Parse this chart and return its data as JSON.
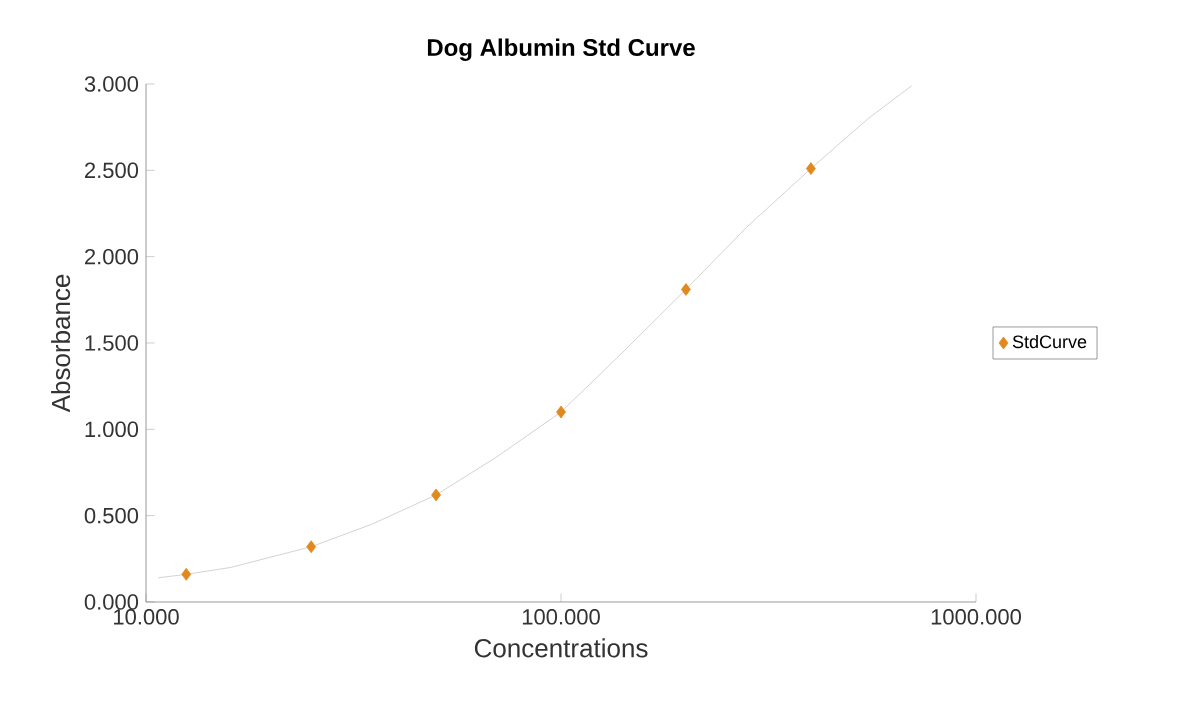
{
  "chart_data": {
    "type": "scatter",
    "title": "Dog Albumin Std Curve",
    "xlabel": "Concentrations",
    "ylabel": "Absorbance",
    "log": "x",
    "xlim": [
      10,
      1000
    ],
    "xticks": [
      {
        "value": 10,
        "label": "10.000"
      },
      {
        "value": 100,
        "label": "100.000"
      },
      {
        "value": 1000,
        "label": "1000.000"
      }
    ],
    "ylim": [
      0,
      3
    ],
    "yticks": [
      {
        "value": 0,
        "label": "0.000"
      },
      {
        "value": 0.5,
        "label": "0.500"
      },
      {
        "value": 1,
        "label": "1.000"
      },
      {
        "value": 1.5,
        "label": "1.500"
      },
      {
        "value": 2,
        "label": "2.000"
      },
      {
        "value": 2.5,
        "label": "2.500"
      },
      {
        "value": 3,
        "label": "3.000"
      }
    ],
    "grid": false,
    "legend": "right",
    "marker": "diamond",
    "series": [
      {
        "name": "StdCurve",
        "color": "#e08a1e",
        "x": [
          12.5,
          25,
          50,
          100,
          200,
          400
        ],
        "values": [
          0.16,
          0.32,
          0.62,
          1.1,
          1.81,
          2.51
        ]
      },
      {
        "type": "line",
        "line_style": "solid",
        "marker": "none",
        "color": "#c8c8c8",
        "x": [
          10.7,
          12.5,
          16,
          20,
          25,
          35,
          50,
          70,
          100,
          140,
          200,
          280,
          400,
          550,
          700
        ],
        "values": [
          0.14,
          0.16,
          0.2,
          0.26,
          0.32,
          0.45,
          0.62,
          0.84,
          1.1,
          1.44,
          1.81,
          2.17,
          2.51,
          2.8,
          2.99
        ]
      }
    ]
  }
}
